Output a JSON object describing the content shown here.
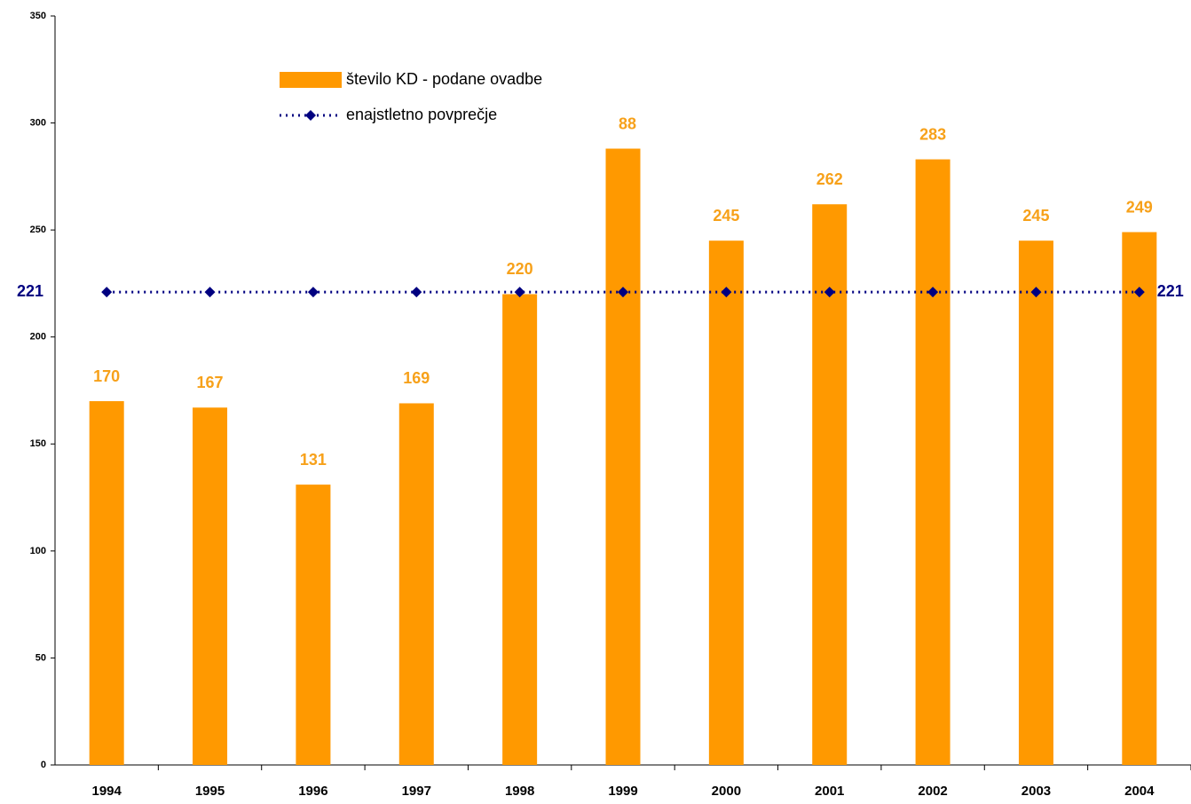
{
  "chart_data": {
    "type": "bar",
    "categories": [
      "1994",
      "1995",
      "1996",
      "1997",
      "1998",
      "1999",
      "2000",
      "2001",
      "2002",
      "2003",
      "2004"
    ],
    "series": [
      {
        "name": "število KD - podane ovadbe",
        "type": "bar",
        "color": "#ff9900",
        "values": [
          170,
          167,
          131,
          169,
          220,
          288,
          245,
          262,
          283,
          245,
          249
        ]
      },
      {
        "name": "enajstletno povprečje",
        "type": "line",
        "color": "#000080",
        "values": [
          221,
          221,
          221,
          221,
          221,
          221,
          221,
          221,
          221,
          221,
          221
        ]
      }
    ],
    "ylim": [
      0,
      350
    ],
    "yticks": [
      0,
      50,
      100,
      150,
      200,
      250,
      300,
      350
    ],
    "grid": false,
    "legend": "top-left"
  }
}
